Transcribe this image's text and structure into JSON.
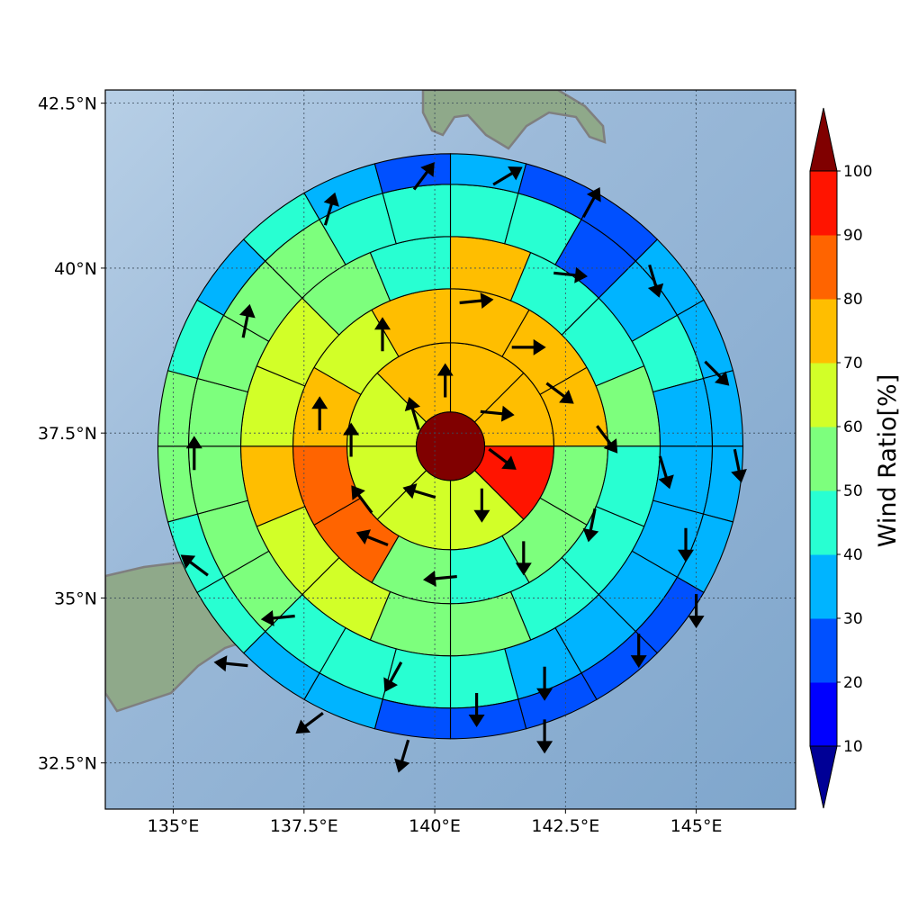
{
  "axes": {
    "x_ticks": [
      {
        "value": 135.0,
        "label": "135°E"
      },
      {
        "value": 137.5,
        "label": "137.5°E"
      },
      {
        "value": 140.0,
        "label": "140°E"
      },
      {
        "value": 142.5,
        "label": "142.5°E"
      },
      {
        "value": 145.0,
        "label": "145°E"
      }
    ],
    "y_ticks": [
      {
        "value": 32.5,
        "label": "32.5°N"
      },
      {
        "value": 35.0,
        "label": "35°N"
      },
      {
        "value": 37.5,
        "label": "37.5°N"
      },
      {
        "value": 40.0,
        "label": "40°N"
      },
      {
        "value": 42.5,
        "label": "42.5°N"
      }
    ]
  },
  "colorbar": {
    "title": "Wind Ratio[%]",
    "ticks": [
      "10",
      "20",
      "30",
      "40",
      "50",
      "60",
      "70",
      "80",
      "90",
      "100"
    ],
    "colors": [
      "#000096",
      "#0000ff",
      "#0050ff",
      "#00b4ff",
      "#28ffd2",
      "#7dff7d",
      "#d2ff28",
      "#ffbe00",
      "#ff6400",
      "#ff1400",
      "#800000"
    ]
  },
  "chart_data": {
    "type": "polar_sector_map",
    "center": {
      "lon": 140.3,
      "lat": 37.3
    },
    "xlim": [
      133.7,
      146.9
    ],
    "ylim": [
      31.8,
      42.7
    ],
    "grid": true,
    "center_disk": {
      "value": 100
    },
    "rings": [
      {
        "ring": 1,
        "values": [
          72,
          76,
          94,
          65,
          62,
          62,
          65,
          72
        ]
      },
      {
        "ring": 2,
        "values": [
          74,
          73,
          74,
          55,
          52,
          48,
          55,
          82,
          86,
          76,
          66,
          70
        ]
      },
      {
        "ring": 3,
        "values": [
          73,
          48,
          43,
          53,
          47,
          42,
          43,
          52,
          58,
          63,
          65,
          72,
          65,
          65,
          52,
          48
        ]
      },
      {
        "ring": 4,
        "values": [
          45,
          40,
          25,
          35,
          40,
          38,
          38,
          37,
          35,
          36,
          38,
          40,
          45,
          45,
          48,
          52,
          55,
          58,
          58,
          58,
          55,
          50,
          48,
          42
        ]
      },
      {
        "ring": 5,
        "values": [
          35,
          28,
          25,
          30,
          37,
          37,
          36,
          33,
          28,
          26,
          24,
          25,
          26,
          30,
          35,
          40,
          45,
          52,
          55,
          40,
          35,
          45,
          38,
          25
        ]
      }
    ],
    "vectors": [
      {
        "lon": 139.6,
        "lat": 37.8,
        "u": -0.3,
        "v": 1
      },
      {
        "lon": 140.2,
        "lat": 38.3,
        "u": 0,
        "v": 1
      },
      {
        "lon": 141.2,
        "lat": 37.8,
        "u": 1,
        "v": -0.1
      },
      {
        "lon": 141.3,
        "lat": 37.1,
        "u": 0.8,
        "v": -0.6
      },
      {
        "lon": 140.9,
        "lat": 36.4,
        "u": 0,
        "v": -1
      },
      {
        "lon": 139.7,
        "lat": 36.6,
        "u": -1,
        "v": 0.3
      },
      {
        "lon": 138.6,
        "lat": 36.5,
        "u": -0.6,
        "v": 0.8
      },
      {
        "lon": 138.4,
        "lat": 37.4,
        "u": 0,
        "v": 1
      },
      {
        "lon": 141.8,
        "lat": 38.8,
        "u": 1,
        "v": 0
      },
      {
        "lon": 142.4,
        "lat": 38.1,
        "u": 0.8,
        "v": -0.6
      },
      {
        "lon": 143.3,
        "lat": 37.4,
        "u": 0.6,
        "v": -0.8
      },
      {
        "lon": 143.0,
        "lat": 36.1,
        "u": -0.2,
        "v": -1
      },
      {
        "lon": 141.7,
        "lat": 35.6,
        "u": 0,
        "v": -1
      },
      {
        "lon": 140.1,
        "lat": 35.3,
        "u": -1,
        "v": -0.1
      },
      {
        "lon": 138.8,
        "lat": 35.9,
        "u": -1,
        "v": 0.4
      },
      {
        "lon": 137.8,
        "lat": 37.8,
        "u": 0,
        "v": 1
      },
      {
        "lon": 139.0,
        "lat": 39.0,
        "u": 0,
        "v": 1
      },
      {
        "lon": 140.8,
        "lat": 39.5,
        "u": 1,
        "v": 0.1
      },
      {
        "lon": 142.6,
        "lat": 39.9,
        "u": 1,
        "v": -0.1
      },
      {
        "lon": 144.4,
        "lat": 36.9,
        "u": 0.3,
        "v": -1
      },
      {
        "lon": 144.8,
        "lat": 35.8,
        "u": 0,
        "v": -1
      },
      {
        "lon": 143.9,
        "lat": 34.2,
        "u": 0,
        "v": -1
      },
      {
        "lon": 142.1,
        "lat": 33.7,
        "u": 0,
        "v": -1
      },
      {
        "lon": 140.8,
        "lat": 33.3,
        "u": 0,
        "v": -1
      },
      {
        "lon": 139.2,
        "lat": 33.8,
        "u": -0.5,
        "v": -0.9
      },
      {
        "lon": 137.0,
        "lat": 34.7,
        "u": -1,
        "v": -0.1
      },
      {
        "lon": 135.4,
        "lat": 35.5,
        "u": -0.8,
        "v": 0.6
      },
      {
        "lon": 135.4,
        "lat": 37.2,
        "u": 0,
        "v": 1
      },
      {
        "lon": 136.4,
        "lat": 39.2,
        "u": 0.2,
        "v": 1
      },
      {
        "lon": 138.0,
        "lat": 40.9,
        "u": 0.3,
        "v": 1
      },
      {
        "lon": 139.8,
        "lat": 41.4,
        "u": 0.6,
        "v": 0.8
      },
      {
        "lon": 141.4,
        "lat": 41.4,
        "u": 1,
        "v": 0.6
      },
      {
        "lon": 143.0,
        "lat": 41.0,
        "u": 0.5,
        "v": 0.9
      },
      {
        "lon": 144.2,
        "lat": 39.8,
        "u": 0.3,
        "v": -1
      },
      {
        "lon": 145.4,
        "lat": 38.4,
        "u": 0.7,
        "v": -0.7
      },
      {
        "lon": 145.8,
        "lat": 37.0,
        "u": 0.2,
        "v": -1
      },
      {
        "lon": 145.0,
        "lat": 34.8,
        "u": 0,
        "v": -1
      },
      {
        "lon": 142.1,
        "lat": 32.9,
        "u": 0,
        "v": -1
      },
      {
        "lon": 139.4,
        "lat": 32.6,
        "u": -0.3,
        "v": -1
      },
      {
        "lon": 137.6,
        "lat": 33.1,
        "u": -0.8,
        "v": -0.6
      },
      {
        "lon": 136.1,
        "lat": 34.0,
        "u": -1,
        "v": 0.1
      }
    ]
  }
}
